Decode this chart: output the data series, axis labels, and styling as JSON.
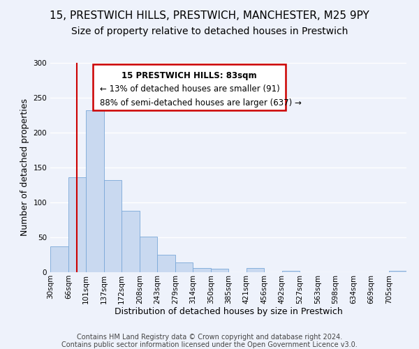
{
  "title": "15, PRESTWICH HILLS, PRESTWICH, MANCHESTER, M25 9PY",
  "subtitle": "Size of property relative to detached houses in Prestwich",
  "xlabel": "Distribution of detached houses by size in Prestwich",
  "ylabel": "Number of detached properties",
  "bar_edges": [
    30,
    66,
    101,
    137,
    172,
    208,
    243,
    279,
    314,
    350,
    385,
    421,
    456,
    492,
    527,
    563,
    598,
    634,
    669,
    705,
    740
  ],
  "bar_heights": [
    37,
    136,
    232,
    132,
    88,
    51,
    25,
    14,
    6,
    5,
    0,
    6,
    0,
    2,
    0,
    0,
    0,
    0,
    0,
    2
  ],
  "bar_color": "#c9d9f0",
  "bar_edge_color": "#7aa8d8",
  "property_line_x": 83,
  "property_line_color": "#cc0000",
  "ylim": [
    0,
    300
  ],
  "yticks": [
    0,
    50,
    100,
    150,
    200,
    250,
    300
  ],
  "annotation_text_line1": "15 PRESTWICH HILLS: 83sqm",
  "annotation_text_line2": "← 13% of detached houses are smaller (91)",
  "annotation_text_line3": "88% of semi-detached houses are larger (637) →",
  "annotation_box_color": "#cc0000",
  "footer_line1": "Contains HM Land Registry data © Crown copyright and database right 2024.",
  "footer_line2": "Contains public sector information licensed under the Open Government Licence v3.0.",
  "background_color": "#eef2fb",
  "grid_color": "#ffffff",
  "title_fontsize": 11,
  "subtitle_fontsize": 10,
  "axis_label_fontsize": 9,
  "tick_label_fontsize": 7.5,
  "annotation_fontsize": 8.5,
  "footer_fontsize": 7
}
